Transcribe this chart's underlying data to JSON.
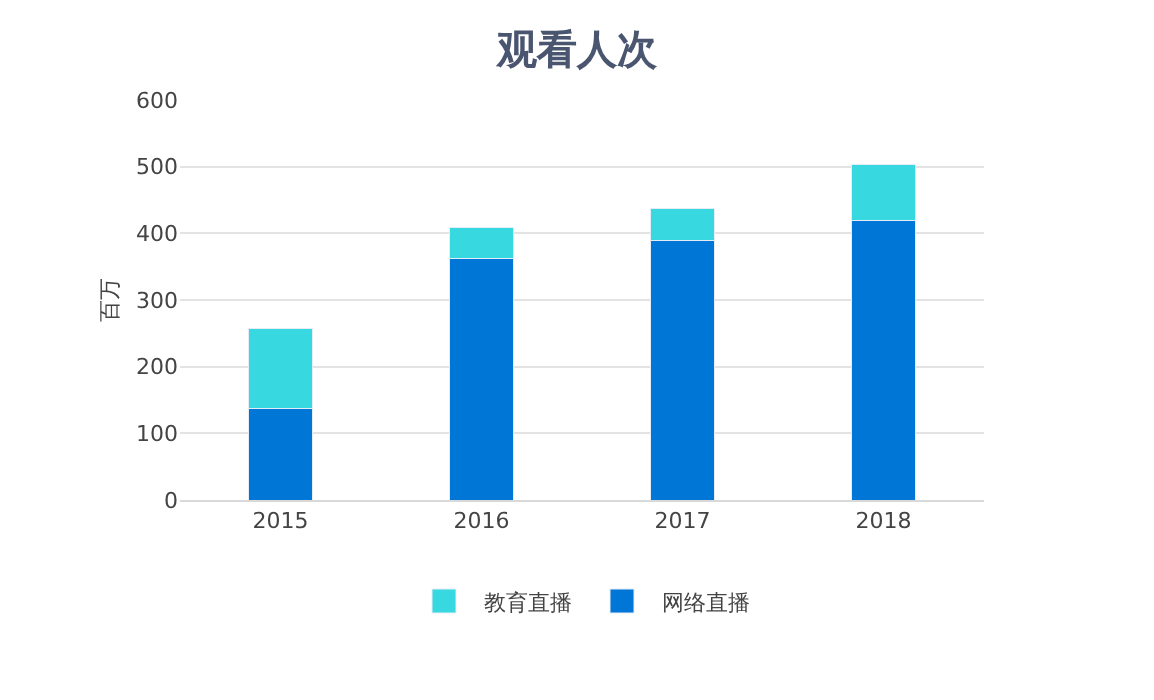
{
  "chart_data": {
    "type": "bar",
    "title": "观看人次",
    "ylabel": "百万",
    "categories": [
      "2015",
      "2016",
      "2017",
      "2018"
    ],
    "series": [
      {
        "name": "网络直播",
        "color": "#0076d6",
        "values": [
          138,
          363,
          389,
          420
        ]
      },
      {
        "name": "教育直播",
        "color": "#38d8e0",
        "values": [
          120,
          46,
          48,
          84
        ]
      }
    ],
    "stacked": true,
    "ylim": [
      0,
      600
    ],
    "yticks": [
      0,
      100,
      200,
      300,
      400,
      500,
      600
    ],
    "grid": "y",
    "legend": "bottom"
  }
}
